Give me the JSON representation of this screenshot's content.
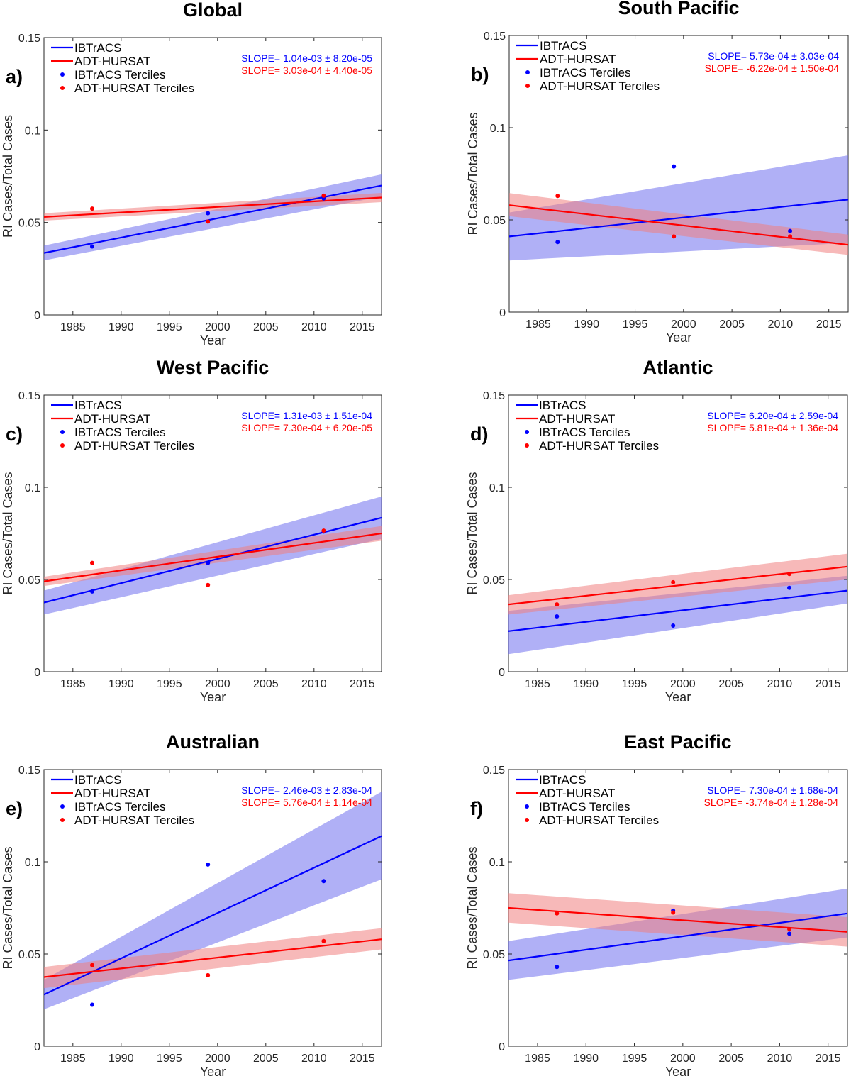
{
  "chart_data": [
    {
      "type": "scatter",
      "panel_label": "a)",
      "title": "Global",
      "xlabel": "Year",
      "ylabel": "RI Cases/Total Cases",
      "xlim": [
        1982,
        2017
      ],
      "ylim": [
        0,
        0.15
      ],
      "xticks": [
        "1985",
        "1990",
        "1995",
        "2000",
        "2005",
        "2010",
        "2015"
      ],
      "yticks": [
        "0",
        "0.05",
        "0.1",
        "0.15"
      ],
      "legend": [
        "IBTrACS",
        "ADT-HURSAT",
        "IBTrACS Terciles",
        "ADT-HURSAT Terciles"
      ],
      "slope_text": [
        "SLOPE= 1.04e-03 ± 8.20e-05",
        "SLOPE= 3.03e-04 ± 4.40e-05"
      ],
      "series": [
        {
          "name": "IBTrACS",
          "color": "#0000ff",
          "band_color": "#7070ee",
          "line": {
            "x": [
              1982,
              2017
            ],
            "y": [
              0.0335,
              0.07
            ]
          },
          "band": {
            "lower": [
              0.0295,
              0.064
            ],
            "upper": [
              0.0375,
              0.076
            ]
          },
          "terciles": {
            "x": [
              1987,
              1999,
              2011
            ],
            "y": [
              0.037,
              0.055,
              0.063
            ]
          }
        },
        {
          "name": "ADT-HURSAT",
          "color": "#ff0000",
          "band_color": "#f08080",
          "line": {
            "x": [
              1982,
              2017
            ],
            "y": [
              0.053,
              0.0635
            ]
          },
          "band": {
            "lower": [
              0.051,
              0.061
            ],
            "upper": [
              0.055,
              0.066
            ]
          },
          "terciles": {
            "x": [
              1987,
              1999,
              2011
            ],
            "y": [
              0.0575,
              0.0505,
              0.0645
            ]
          }
        }
      ]
    },
    {
      "type": "scatter",
      "panel_label": "b)",
      "title": "South Pacific",
      "xlabel": "Year",
      "ylabel": "RI Cases/Total Cases",
      "xlim": [
        1982,
        2017
      ],
      "ylim": [
        0,
        0.15
      ],
      "xticks": [
        "1985",
        "1990",
        "1995",
        "2000",
        "2005",
        "2010",
        "2015"
      ],
      "yticks": [
        "0",
        "0.05",
        "0.1",
        "0.15"
      ],
      "legend": [
        "IBTrACS",
        "ADT-HURSAT",
        "IBTrACS Terciles",
        "ADT-HURSAT Terciles"
      ],
      "slope_text": [
        "SLOPE= 5.73e-04 ± 3.03e-04",
        "SLOPE= -6.22e-04 ± 1.50e-04"
      ],
      "series": [
        {
          "name": "IBTrACS",
          "color": "#0000ff",
          "band_color": "#7070ee",
          "line": {
            "x": [
              1982,
              2017
            ],
            "y": [
              0.041,
              0.061
            ]
          },
          "band": {
            "lower": [
              0.028,
              0.0375
            ],
            "upper": [
              0.054,
              0.085
            ]
          },
          "terciles": {
            "x": [
              1987,
              1999,
              2011
            ],
            "y": [
              0.038,
              0.079,
              0.044
            ]
          }
        },
        {
          "name": "ADT-HURSAT",
          "color": "#ff0000",
          "band_color": "#f08080",
          "line": {
            "x": [
              1982,
              2017
            ],
            "y": [
              0.058,
              0.0365
            ]
          },
          "band": {
            "lower": [
              0.052,
              0.031
            ],
            "upper": [
              0.0645,
              0.042
            ]
          },
          "terciles": {
            "x": [
              1987,
              1999,
              2011
            ],
            "y": [
              0.063,
              0.041,
              0.041
            ]
          }
        }
      ]
    },
    {
      "type": "scatter",
      "panel_label": "c)",
      "title": "West Pacific",
      "xlabel": "Year",
      "ylabel": "RI Cases/Total Cases",
      "xlim": [
        1982,
        2017
      ],
      "ylim": [
        0,
        0.15
      ],
      "xticks": [
        "1985",
        "1990",
        "1995",
        "2000",
        "2005",
        "2010",
        "2015"
      ],
      "yticks": [
        "0",
        "0.05",
        "0.1",
        "0.15"
      ],
      "legend": [
        "IBTrACS",
        "ADT-HURSAT",
        "IBTrACS Terciles",
        "ADT-HURSAT Terciles"
      ],
      "slope_text": [
        "SLOPE= 1.31e-03 ± 1.51e-04",
        "SLOPE= 7.30e-04 ± 6.20e-05"
      ],
      "series": [
        {
          "name": "IBTrACS",
          "color": "#0000ff",
          "band_color": "#7070ee",
          "line": {
            "x": [
              1982,
              2017
            ],
            "y": [
              0.0375,
              0.0835
            ]
          },
          "band": {
            "lower": [
              0.031,
              0.072
            ],
            "upper": [
              0.044,
              0.095
            ]
          },
          "terciles": {
            "x": [
              1987,
              1999,
              2011
            ],
            "y": [
              0.0435,
              0.059,
              0.076
            ]
          }
        },
        {
          "name": "ADT-HURSAT",
          "color": "#ff0000",
          "band_color": "#f08080",
          "line": {
            "x": [
              1982,
              2017
            ],
            "y": [
              0.049,
              0.075
            ]
          },
          "band": {
            "lower": [
              0.0465,
              0.071
            ],
            "upper": [
              0.0515,
              0.079
            ]
          },
          "terciles": {
            "x": [
              1987,
              1999,
              2011
            ],
            "y": [
              0.059,
              0.047,
              0.0765
            ]
          }
        }
      ]
    },
    {
      "type": "scatter",
      "panel_label": "d)",
      "title": "Atlantic",
      "xlabel": "Year",
      "ylabel": "RI Cases/Total Cases",
      "xlim": [
        1982,
        2017
      ],
      "ylim": [
        0,
        0.15
      ],
      "xticks": [
        "1985",
        "1990",
        "1995",
        "2000",
        "2005",
        "2010",
        "2015"
      ],
      "yticks": [
        "0",
        "0.05",
        "0.1",
        "0.15"
      ],
      "legend": [
        "IBTrACS",
        "ADT-HURSAT",
        "IBTrACS Terciles",
        "ADT-HURSAT Terciles"
      ],
      "slope_text": [
        "SLOPE= 6.20e-04 ± 2.59e-04",
        "SLOPE= 5.81e-04 ± 1.36e-04"
      ],
      "series": [
        {
          "name": "IBTrACS",
          "color": "#0000ff",
          "band_color": "#7070ee",
          "line": {
            "x": [
              1982,
              2017
            ],
            "y": [
              0.022,
              0.044
            ]
          },
          "band": {
            "lower": [
              0.0095,
              0.037
            ],
            "upper": [
              0.033,
              0.052
            ]
          },
          "terciles": {
            "x": [
              1987,
              1999,
              2011
            ],
            "y": [
              0.03,
              0.025,
              0.0455
            ]
          }
        },
        {
          "name": "ADT-HURSAT",
          "color": "#ff0000",
          "band_color": "#f08080",
          "line": {
            "x": [
              1982,
              2017
            ],
            "y": [
              0.0365,
              0.057
            ]
          },
          "band": {
            "lower": [
              0.031,
              0.05
            ],
            "upper": [
              0.0415,
              0.064
            ]
          },
          "terciles": {
            "x": [
              1987,
              1999,
              2011
            ],
            "y": [
              0.0365,
              0.0485,
              0.053
            ]
          }
        }
      ]
    },
    {
      "type": "scatter",
      "panel_label": "e)",
      "title": "Australian",
      "xlabel": "Year",
      "ylabel": "RI Cases/Total Cases",
      "xlim": [
        1982,
        2017
      ],
      "ylim": [
        0,
        0.15
      ],
      "xticks": [
        "1985",
        "1990",
        "1995",
        "2000",
        "2005",
        "2010",
        "2015"
      ],
      "yticks": [
        "0",
        "0.05",
        "0.1",
        "0.15"
      ],
      "legend": [
        "IBTrACS",
        "ADT-HURSAT",
        "IBTrACS Terciles",
        "ADT-HURSAT Terciles"
      ],
      "slope_text": [
        "SLOPE= 2.46e-03 ± 2.83e-04",
        "SLOPE= 5.76e-04 ± 1.14e-04"
      ],
      "series": [
        {
          "name": "IBTrACS",
          "color": "#0000ff",
          "band_color": "#7070ee",
          "line": {
            "x": [
              1982,
              2017
            ],
            "y": [
              0.028,
              0.114
            ]
          },
          "band": {
            "lower": [
              0.02,
              0.0905
            ],
            "upper": [
              0.036,
              0.138
            ]
          },
          "terciles": {
            "x": [
              1987,
              1999,
              2011
            ],
            "y": [
              0.0225,
              0.0985,
              0.0895
            ]
          }
        },
        {
          "name": "ADT-HURSAT",
          "color": "#ff0000",
          "band_color": "#f08080",
          "line": {
            "x": [
              1982,
              2017
            ],
            "y": [
              0.0375,
              0.058
            ]
          },
          "band": {
            "lower": [
              0.0315,
              0.0525
            ],
            "upper": [
              0.043,
              0.064
            ]
          },
          "terciles": {
            "x": [
              1987,
              1999,
              2011
            ],
            "y": [
              0.044,
              0.0385,
              0.057
            ]
          }
        }
      ]
    },
    {
      "type": "scatter",
      "panel_label": "f)",
      "title": "East Pacific",
      "xlabel": "Year",
      "ylabel": "RI Cases/Total Cases",
      "xlim": [
        1982,
        2017
      ],
      "ylim": [
        0,
        0.15
      ],
      "xticks": [
        "1985",
        "1990",
        "1995",
        "2000",
        "2005",
        "2010",
        "2015"
      ],
      "yticks": [
        "0",
        "0.05",
        "0.1",
        "0.15"
      ],
      "legend": [
        "IBTrACS",
        "ADT-HURSAT",
        "IBTrACS Terciles",
        "ADT-HURSAT Terciles"
      ],
      "slope_text": [
        "SLOPE= 7.30e-04 ± 1.68e-04",
        "SLOPE= -3.74e-04 ± 1.28e-04"
      ],
      "series": [
        {
          "name": "IBTrACS",
          "color": "#0000ff",
          "band_color": "#7070ee",
          "line": {
            "x": [
              1982,
              2017
            ],
            "y": [
              0.0465,
              0.072
            ]
          },
          "band": {
            "lower": [
              0.036,
              0.059
            ],
            "upper": [
              0.057,
              0.0855
            ]
          },
          "terciles": {
            "x": [
              1987,
              1999,
              2011
            ],
            "y": [
              0.043,
              0.0735,
              0.061
            ]
          }
        },
        {
          "name": "ADT-HURSAT",
          "color": "#ff0000",
          "band_color": "#f08080",
          "line": {
            "x": [
              1982,
              2017
            ],
            "y": [
              0.075,
              0.062
            ]
          },
          "band": {
            "lower": [
              0.067,
              0.054
            ],
            "upper": [
              0.083,
              0.07
            ]
          },
          "terciles": {
            "x": [
              1987,
              1999,
              2011
            ],
            "y": [
              0.072,
              0.0725,
              0.0635
            ]
          }
        }
      ]
    }
  ]
}
